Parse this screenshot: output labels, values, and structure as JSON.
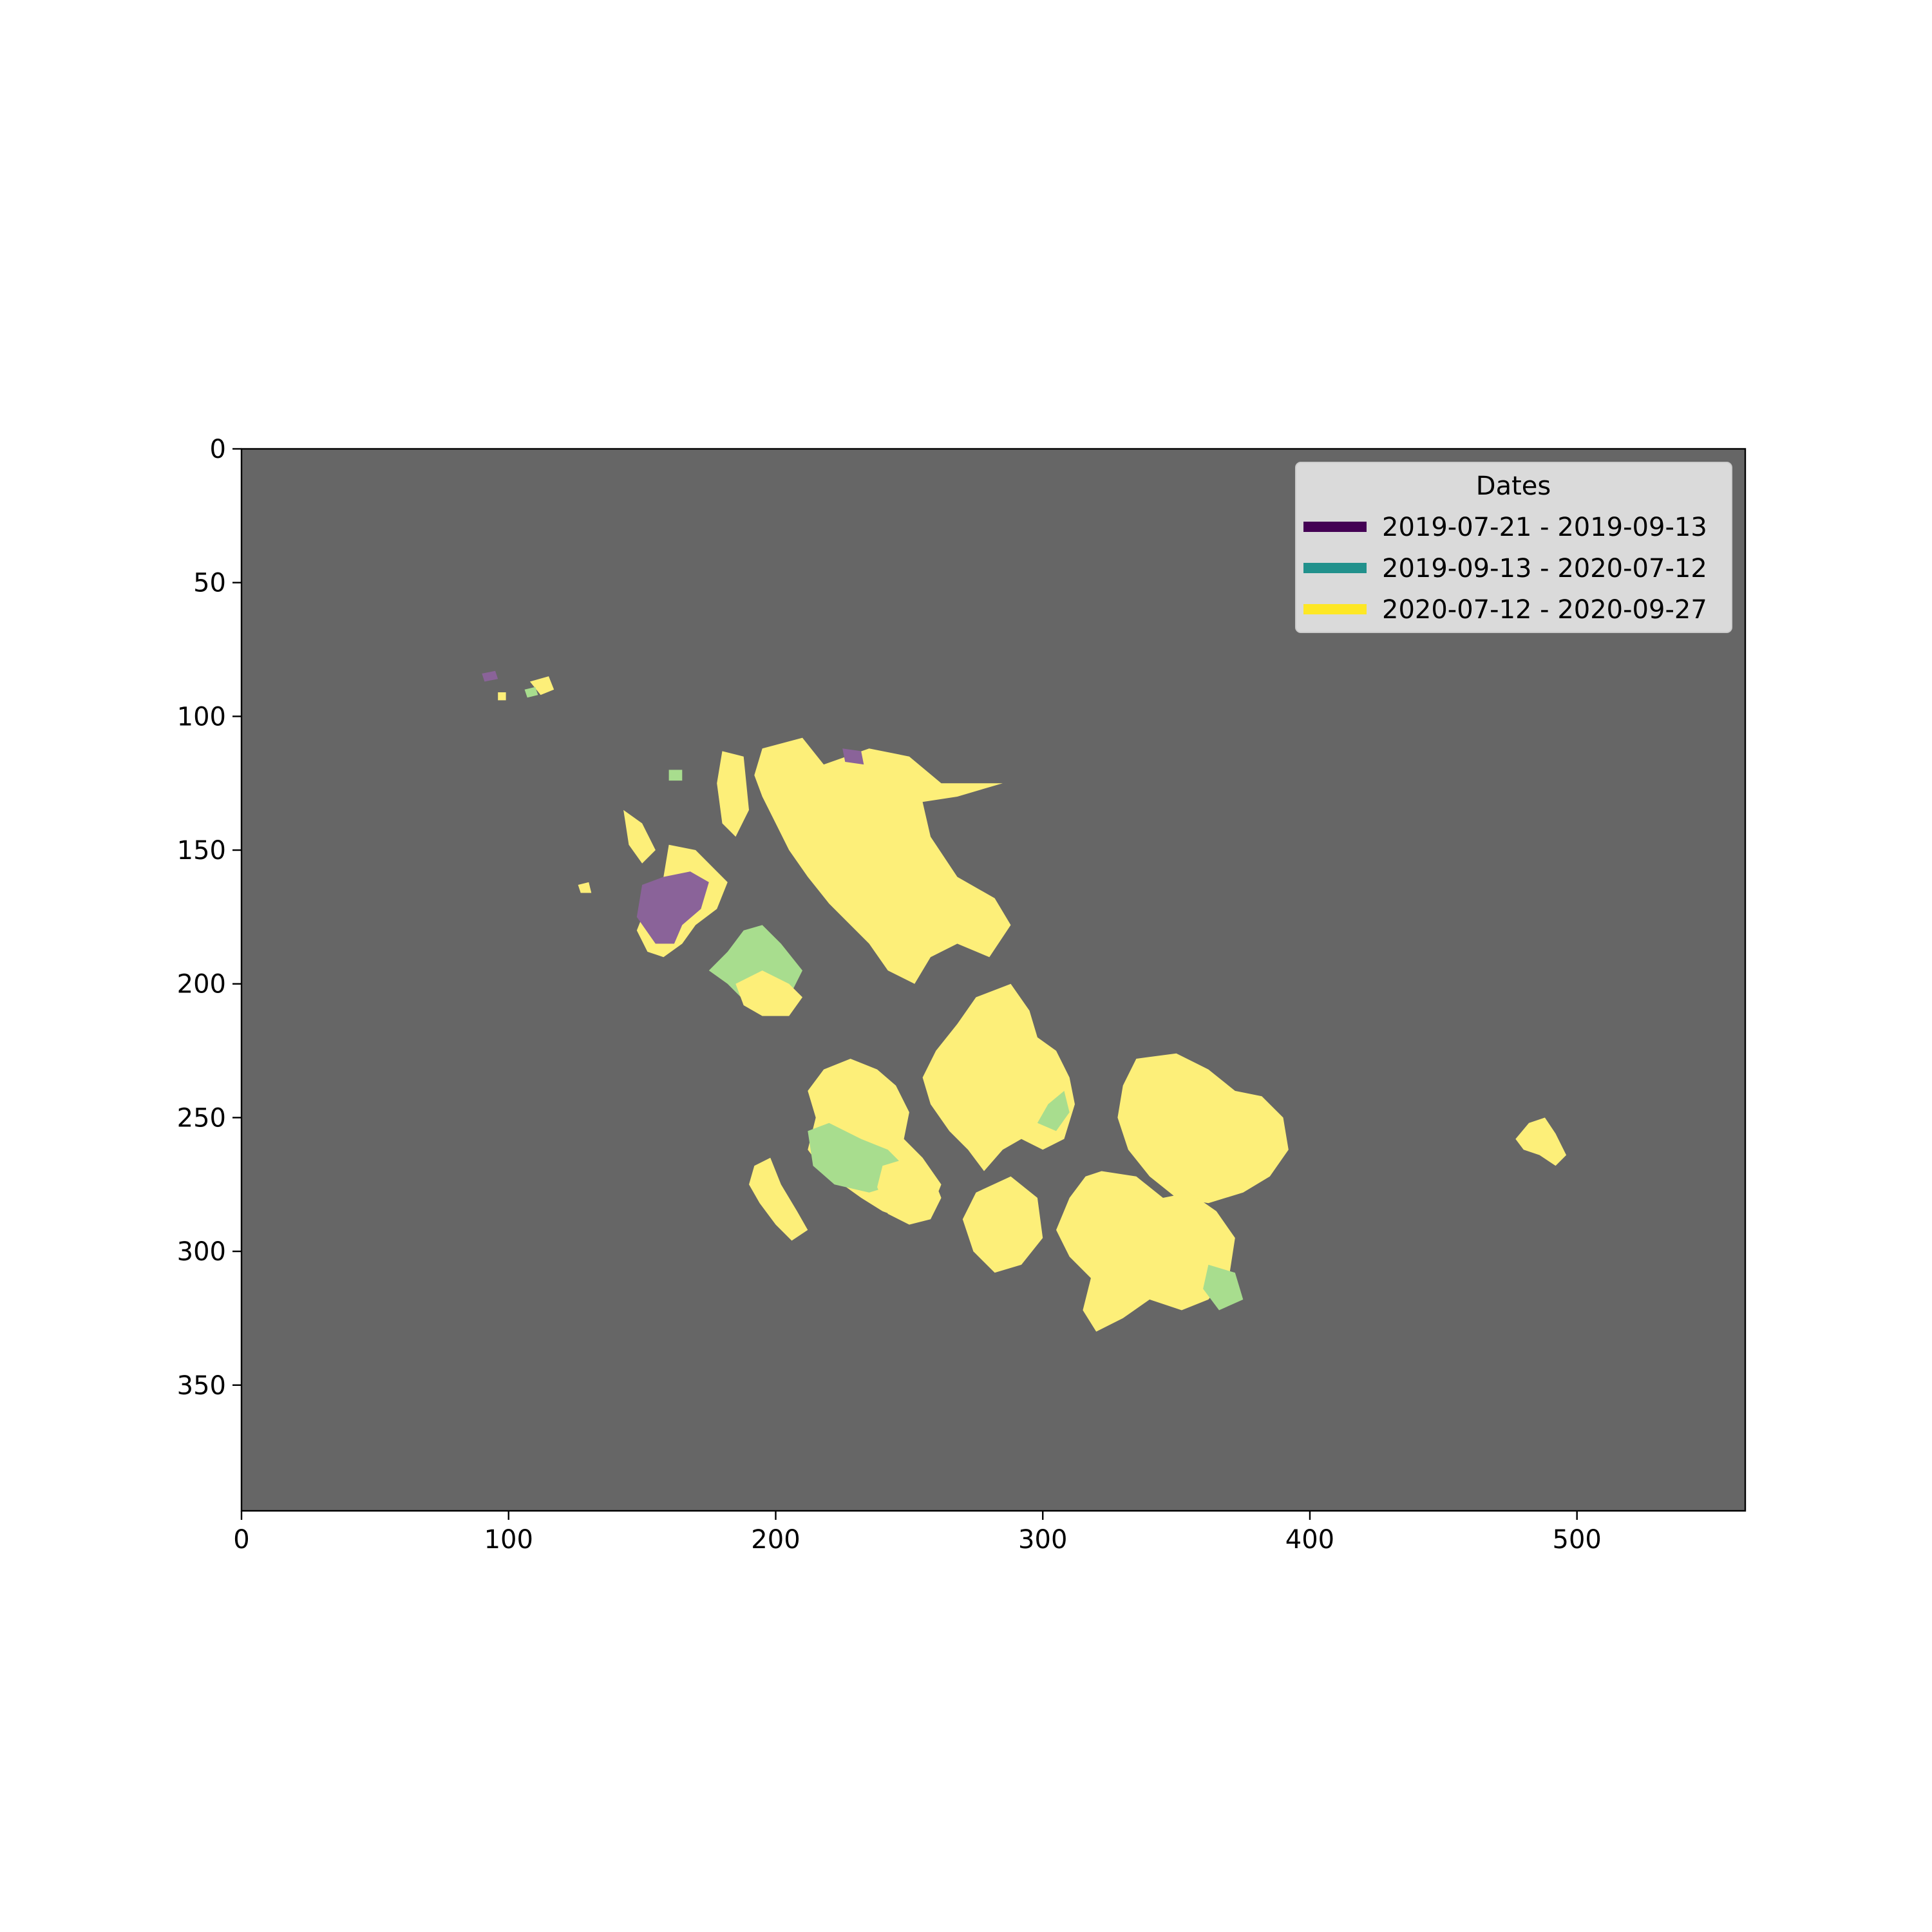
{
  "chart_data": {
    "type": "heatmap",
    "title": "",
    "xlabel": "",
    "ylabel": "",
    "xlim": [
      0,
      563
    ],
    "ylim": [
      397,
      0
    ],
    "x_ticks": [
      0,
      100,
      200,
      300,
      400,
      500
    ],
    "y_ticks": [
      0,
      50,
      100,
      150,
      200,
      250,
      300,
      350
    ],
    "background_color": "#666666",
    "legend": {
      "title": "Dates",
      "placement": "top-right",
      "entries": [
        {
          "label": "2019-07-21 - 2019-09-13",
          "color": "#440154"
        },
        {
          "label": "2019-09-13 - 2020-07-12",
          "color": "#21918c"
        },
        {
          "label": "2020-07-12 - 2020-09-27",
          "color": "#fde725"
        }
      ]
    },
    "fill_colors": {
      "2019-07-21 - 2019-09-13": "#8a6399",
      "2019-09-13 - 2020-07-12": "#a8dd8e",
      "2020-07-12 - 2020-09-27": "#fdef79"
    },
    "regions": [
      {
        "class": "2020-07-12 - 2020-09-27",
        "points": [
          [
            195,
            112
          ],
          [
            210,
            108
          ],
          [
            218,
            118
          ],
          [
            235,
            112
          ],
          [
            250,
            115
          ],
          [
            262,
            125
          ],
          [
            285,
            125
          ],
          [
            268,
            130
          ],
          [
            255,
            132
          ],
          [
            258,
            145
          ],
          [
            268,
            160
          ],
          [
            282,
            168
          ],
          [
            288,
            178
          ],
          [
            280,
            190
          ],
          [
            268,
            185
          ],
          [
            258,
            190
          ],
          [
            252,
            200
          ],
          [
            242,
            195
          ],
          [
            235,
            185
          ],
          [
            228,
            178
          ],
          [
            220,
            170
          ],
          [
            212,
            160
          ],
          [
            205,
            150
          ],
          [
            200,
            140
          ],
          [
            195,
            130
          ],
          [
            192,
            122
          ]
        ]
      },
      {
        "class": "2020-07-12 - 2020-09-27",
        "points": [
          [
            180,
            113
          ],
          [
            188,
            115
          ],
          [
            190,
            135
          ],
          [
            185,
            145
          ],
          [
            180,
            140
          ],
          [
            178,
            125
          ]
        ]
      },
      {
        "class": "2020-07-12 - 2020-09-27",
        "points": [
          [
            160,
            148
          ],
          [
            170,
            150
          ],
          [
            178,
            158
          ],
          [
            182,
            162
          ],
          [
            178,
            172
          ],
          [
            170,
            178
          ],
          [
            165,
            185
          ],
          [
            158,
            190
          ],
          [
            152,
            188
          ],
          [
            148,
            180
          ],
          [
            152,
            170
          ],
          [
            158,
            160
          ]
        ]
      },
      {
        "class": "2019-07-21 - 2019-09-13",
        "points": [
          [
            150,
            163
          ],
          [
            158,
            160
          ],
          [
            168,
            158
          ],
          [
            175,
            162
          ],
          [
            172,
            172
          ],
          [
            165,
            178
          ],
          [
            162,
            185
          ],
          [
            155,
            185
          ],
          [
            148,
            175
          ]
        ]
      },
      {
        "class": "2020-07-12 - 2020-09-27",
        "points": [
          [
            143,
            135
          ],
          [
            150,
            140
          ],
          [
            155,
            150
          ],
          [
            150,
            155
          ],
          [
            145,
            148
          ]
        ]
      },
      {
        "class": "2019-09-13 - 2020-07-12",
        "points": [
          [
            175,
            195
          ],
          [
            182,
            188
          ],
          [
            188,
            180
          ],
          [
            195,
            178
          ],
          [
            202,
            185
          ],
          [
            210,
            195
          ],
          [
            205,
            205
          ],
          [
            198,
            210
          ],
          [
            190,
            208
          ],
          [
            182,
            200
          ]
        ]
      },
      {
        "class": "2020-07-12 - 2020-09-27",
        "points": [
          [
            185,
            200
          ],
          [
            195,
            195
          ],
          [
            205,
            200
          ],
          [
            210,
            205
          ],
          [
            205,
            212
          ],
          [
            195,
            212
          ],
          [
            188,
            208
          ]
        ]
      },
      {
        "class": "2020-07-12 - 2020-09-27",
        "points": [
          [
            275,
            205
          ],
          [
            288,
            200
          ],
          [
            295,
            210
          ],
          [
            298,
            220
          ],
          [
            305,
            225
          ],
          [
            310,
            235
          ],
          [
            312,
            245
          ],
          [
            308,
            258
          ],
          [
            300,
            262
          ],
          [
            292,
            258
          ],
          [
            285,
            262
          ],
          [
            278,
            270
          ],
          [
            272,
            262
          ],
          [
            265,
            255
          ],
          [
            258,
            245
          ],
          [
            255,
            235
          ],
          [
            260,
            225
          ],
          [
            268,
            215
          ]
        ]
      },
      {
        "class": "2019-09-13 - 2020-07-12",
        "points": [
          [
            302,
            245
          ],
          [
            308,
            240
          ],
          [
            310,
            248
          ],
          [
            305,
            255
          ],
          [
            298,
            252
          ]
        ]
      },
      {
        "class": "2020-07-12 - 2020-09-27",
        "points": [
          [
            218,
            232
          ],
          [
            228,
            228
          ],
          [
            238,
            232
          ],
          [
            245,
            238
          ],
          [
            250,
            248
          ],
          [
            248,
            258
          ],
          [
            255,
            265
          ],
          [
            262,
            275
          ],
          [
            258,
            285
          ],
          [
            248,
            288
          ],
          [
            240,
            285
          ],
          [
            232,
            280
          ],
          [
            225,
            275
          ],
          [
            218,
            270
          ],
          [
            212,
            262
          ],
          [
            215,
            250
          ],
          [
            212,
            240
          ]
        ]
      },
      {
        "class": "2019-09-13 - 2020-07-12",
        "points": [
          [
            212,
            255
          ],
          [
            220,
            252
          ],
          [
            232,
            258
          ],
          [
            242,
            262
          ],
          [
            248,
            268
          ],
          [
            245,
            275
          ],
          [
            235,
            278
          ],
          [
            222,
            275
          ],
          [
            214,
            268
          ]
        ]
      },
      {
        "class": "2020-07-12 - 2020-09-27",
        "points": [
          [
            240,
            268
          ],
          [
            250,
            265
          ],
          [
            258,
            270
          ],
          [
            262,
            280
          ],
          [
            258,
            288
          ],
          [
            250,
            290
          ],
          [
            242,
            286
          ],
          [
            238,
            276
          ]
        ]
      },
      {
        "class": "2020-07-12 - 2020-09-27",
        "points": [
          [
            335,
            228
          ],
          [
            350,
            226
          ],
          [
            362,
            232
          ],
          [
            372,
            240
          ],
          [
            382,
            242
          ],
          [
            390,
            250
          ],
          [
            392,
            262
          ],
          [
            385,
            272
          ],
          [
            375,
            278
          ],
          [
            362,
            282
          ],
          [
            350,
            280
          ],
          [
            340,
            272
          ],
          [
            332,
            262
          ],
          [
            328,
            250
          ],
          [
            330,
            238
          ]
        ]
      },
      {
        "class": "2020-07-12 - 2020-09-27",
        "points": [
          [
            322,
            270
          ],
          [
            335,
            272
          ],
          [
            345,
            280
          ],
          [
            355,
            278
          ],
          [
            365,
            285
          ],
          [
            372,
            295
          ],
          [
            370,
            308
          ],
          [
            362,
            318
          ],
          [
            352,
            322
          ],
          [
            340,
            318
          ],
          [
            330,
            325
          ],
          [
            320,
            330
          ],
          [
            315,
            322
          ],
          [
            318,
            310
          ],
          [
            310,
            302
          ],
          [
            305,
            292
          ],
          [
            310,
            280
          ],
          [
            316,
            272
          ]
        ]
      },
      {
        "class": "2019-09-13 - 2020-07-12",
        "points": [
          [
            362,
            305
          ],
          [
            372,
            308
          ],
          [
            375,
            318
          ],
          [
            366,
            322
          ],
          [
            360,
            314
          ]
        ]
      },
      {
        "class": "2020-07-12 - 2020-09-27",
        "points": [
          [
            275,
            278
          ],
          [
            288,
            272
          ],
          [
            298,
            280
          ],
          [
            300,
            295
          ],
          [
            292,
            305
          ],
          [
            282,
            308
          ],
          [
            274,
            300
          ],
          [
            270,
            288
          ]
        ]
      },
      {
        "class": "2020-07-12 - 2020-09-27",
        "points": [
          [
            192,
            268
          ],
          [
            198,
            265
          ],
          [
            202,
            275
          ],
          [
            208,
            285
          ],
          [
            212,
            292
          ],
          [
            206,
            296
          ],
          [
            200,
            290
          ],
          [
            194,
            282
          ],
          [
            190,
            275
          ]
        ]
      },
      {
        "class": "2020-07-12 - 2020-09-27",
        "points": [
          [
            477,
            258
          ],
          [
            482,
            252
          ],
          [
            488,
            250
          ],
          [
            492,
            256
          ],
          [
            496,
            264
          ],
          [
            492,
            268
          ],
          [
            486,
            264
          ],
          [
            480,
            262
          ]
        ]
      },
      {
        "class": "2020-07-12 - 2020-09-27",
        "points": [
          [
            108,
            87
          ],
          [
            115,
            85
          ],
          [
            117,
            90
          ],
          [
            112,
            92
          ]
        ]
      },
      {
        "class": "2019-09-13 - 2020-07-12",
        "points": [
          [
            106,
            90
          ],
          [
            110,
            89
          ],
          [
            111,
            92
          ],
          [
            107,
            93
          ]
        ]
      },
      {
        "class": "2019-07-21 - 2019-09-13",
        "points": [
          [
            90,
            84
          ],
          [
            95,
            83
          ],
          [
            96,
            86
          ],
          [
            91,
            87
          ]
        ]
      },
      {
        "class": "2020-07-12 - 2020-09-27",
        "points": [
          [
            96,
            91
          ],
          [
            99,
            91
          ],
          [
            99,
            94
          ],
          [
            96,
            94
          ]
        ]
      },
      {
        "class": "2020-07-12 - 2020-09-27",
        "points": [
          [
            126,
            163
          ],
          [
            130,
            162
          ],
          [
            131,
            166
          ],
          [
            127,
            166
          ]
        ]
      },
      {
        "class": "2019-09-13 - 2020-07-12",
        "points": [
          [
            160,
            120
          ],
          [
            165,
            120
          ],
          [
            165,
            124
          ],
          [
            160,
            124
          ]
        ]
      },
      {
        "class": "2019-07-21 - 2019-09-13",
        "points": [
          [
            225,
            112
          ],
          [
            232,
            113
          ],
          [
            233,
            118
          ],
          [
            226,
            117
          ]
        ]
      }
    ]
  }
}
